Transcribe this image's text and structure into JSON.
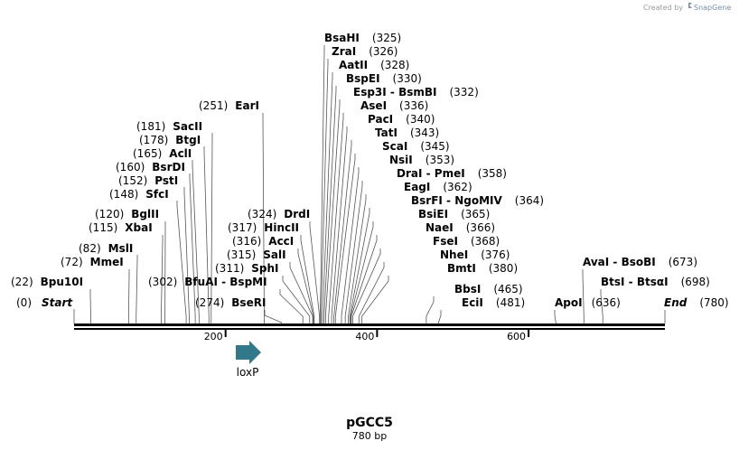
{
  "credit": {
    "prefix": "Created by",
    "brand": "SnapGene"
  },
  "plasmid": {
    "name": "pGCC5",
    "size_label": "780 bp",
    "length": 780
  },
  "ruler": {
    "ticks": [
      200,
      400,
      600
    ]
  },
  "feature": {
    "name": "loxP",
    "color": "#31788a"
  },
  "sites": [
    {
      "name": "Start",
      "pos": 0,
      "pos_label": "(0)",
      "kind": "end"
    },
    {
      "name": "Bpu10I",
      "pos": 22,
      "pos_label": "(22)"
    },
    {
      "name": "MmeI",
      "pos": 72,
      "pos_label": "(72)"
    },
    {
      "name": "MslI",
      "pos": 82,
      "pos_label": "(82)"
    },
    {
      "name": "XbaI",
      "pos": 115,
      "pos_label": "(115)"
    },
    {
      "name": "BglII",
      "pos": 120,
      "pos_label": "(120)"
    },
    {
      "name": "SfcI",
      "pos": 148,
      "pos_label": "(148)"
    },
    {
      "name": "PstI",
      "pos": 152,
      "pos_label": "(152)"
    },
    {
      "name": "BsrDI",
      "pos": 160,
      "pos_label": "(160)"
    },
    {
      "name": "AclI",
      "pos": 165,
      "pos_label": "(165)"
    },
    {
      "name": "BtgI",
      "pos": 178,
      "pos_label": "(178)"
    },
    {
      "name": "SacII",
      "pos": 181,
      "pos_label": "(181)"
    },
    {
      "name": "EarI",
      "pos": 251,
      "pos_label": "(251)"
    },
    {
      "name": "BseRI",
      "pos": 274,
      "pos_label": "(274)"
    },
    {
      "name": "BfuAI - BspMI",
      "pos": 302,
      "pos_label": "(302)"
    },
    {
      "name": "SphI",
      "pos": 311,
      "pos_label": "(311)"
    },
    {
      "name": "SalI",
      "pos": 315,
      "pos_label": "(315)"
    },
    {
      "name": "AccI",
      "pos": 316,
      "pos_label": "(316)"
    },
    {
      "name": "HincII",
      "pos": 317,
      "pos_label": "(317)"
    },
    {
      "name": "DrdI",
      "pos": 324,
      "pos_label": "(324)"
    },
    {
      "name": "BsaHI",
      "pos": 325,
      "pos_label": "(325)"
    },
    {
      "name": "ZraI",
      "pos": 326,
      "pos_label": "(326)"
    },
    {
      "name": "AatII",
      "pos": 328,
      "pos_label": "(328)"
    },
    {
      "name": "BspEI",
      "pos": 330,
      "pos_label": "(330)"
    },
    {
      "name": "Esp3I - BsmBI",
      "pos": 332,
      "pos_label": "(332)"
    },
    {
      "name": "AseI",
      "pos": 336,
      "pos_label": "(336)"
    },
    {
      "name": "PacI",
      "pos": 340,
      "pos_label": "(340)"
    },
    {
      "name": "TatI",
      "pos": 343,
      "pos_label": "(343)"
    },
    {
      "name": "ScaI",
      "pos": 345,
      "pos_label": "(345)"
    },
    {
      "name": "NsiI",
      "pos": 353,
      "pos_label": "(353)"
    },
    {
      "name": "DraI - PmeI",
      "pos": 358,
      "pos_label": "(358)"
    },
    {
      "name": "EagI",
      "pos": 362,
      "pos_label": "(362)"
    },
    {
      "name": "BsrFI - NgoMIV",
      "pos": 364,
      "pos_label": "(364)"
    },
    {
      "name": "BsiEI",
      "pos": 365,
      "pos_label": "(365)"
    },
    {
      "name": "NaeI",
      "pos": 366,
      "pos_label": "(366)"
    },
    {
      "name": "FseI",
      "pos": 368,
      "pos_label": "(368)"
    },
    {
      "name": "NheI",
      "pos": 376,
      "pos_label": "(376)"
    },
    {
      "name": "BmtI",
      "pos": 380,
      "pos_label": "(380)"
    },
    {
      "name": "BbsI",
      "pos": 465,
      "pos_label": "(465)"
    },
    {
      "name": "EciI",
      "pos": 481,
      "pos_label": "(481)"
    },
    {
      "name": "ApoI",
      "pos": 636,
      "pos_label": "(636)"
    },
    {
      "name": "AvaI - BsoBI",
      "pos": 673,
      "pos_label": "(673)"
    },
    {
      "name": "BtsI - BtsαI",
      "pos": 698,
      "pos_label": "(698)"
    },
    {
      "name": "End",
      "pos": 780,
      "pos_label": "(780)",
      "kind": "end"
    }
  ]
}
